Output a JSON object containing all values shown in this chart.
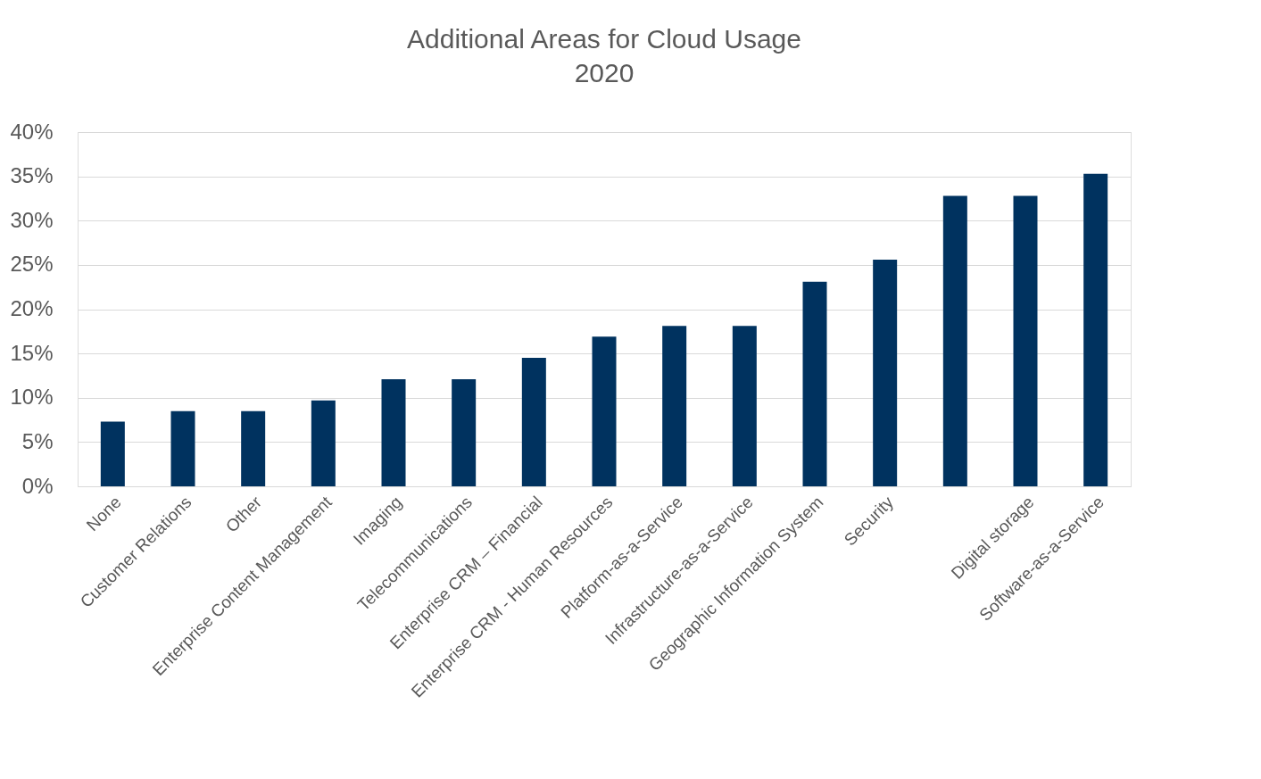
{
  "chart_data": {
    "type": "bar",
    "title": "Additional Areas for Cloud Usage",
    "subtitle": "2020",
    "categories": [
      "None",
      "Customer Relations",
      "Other",
      "Enterprise Content Management",
      "Imaging",
      "Telecommunications",
      "Enterprise CRM – Financial",
      "Enterprise CRM - Human Resources",
      "Platform-as-a-Service",
      "Infrastructure-as-a-Service",
      "Geographic Information System",
      "Security",
      null,
      "Digital storage",
      "Software-as-a-Service"
    ],
    "values": [
      7.3,
      8.5,
      8.5,
      9.7,
      12.1,
      12.1,
      14.5,
      16.9,
      18.1,
      18.1,
      23.1,
      25.6,
      32.8,
      32.8,
      35.3
    ],
    "color": "#00325f",
    "ylim": [
      0,
      40
    ],
    "yticks": [
      {
        "value": 0,
        "label": "0%"
      },
      {
        "value": 5,
        "label": "5%"
      },
      {
        "value": 10,
        "label": "10%"
      },
      {
        "value": 15,
        "label": "15%"
      },
      {
        "value": 20,
        "label": "20%"
      },
      {
        "value": 25,
        "label": "25%"
      },
      {
        "value": 30,
        "label": "30%"
      },
      {
        "value": 35,
        "label": "35%"
      },
      {
        "value": 40,
        "label": "40%"
      }
    ],
    "grid": "y"
  }
}
